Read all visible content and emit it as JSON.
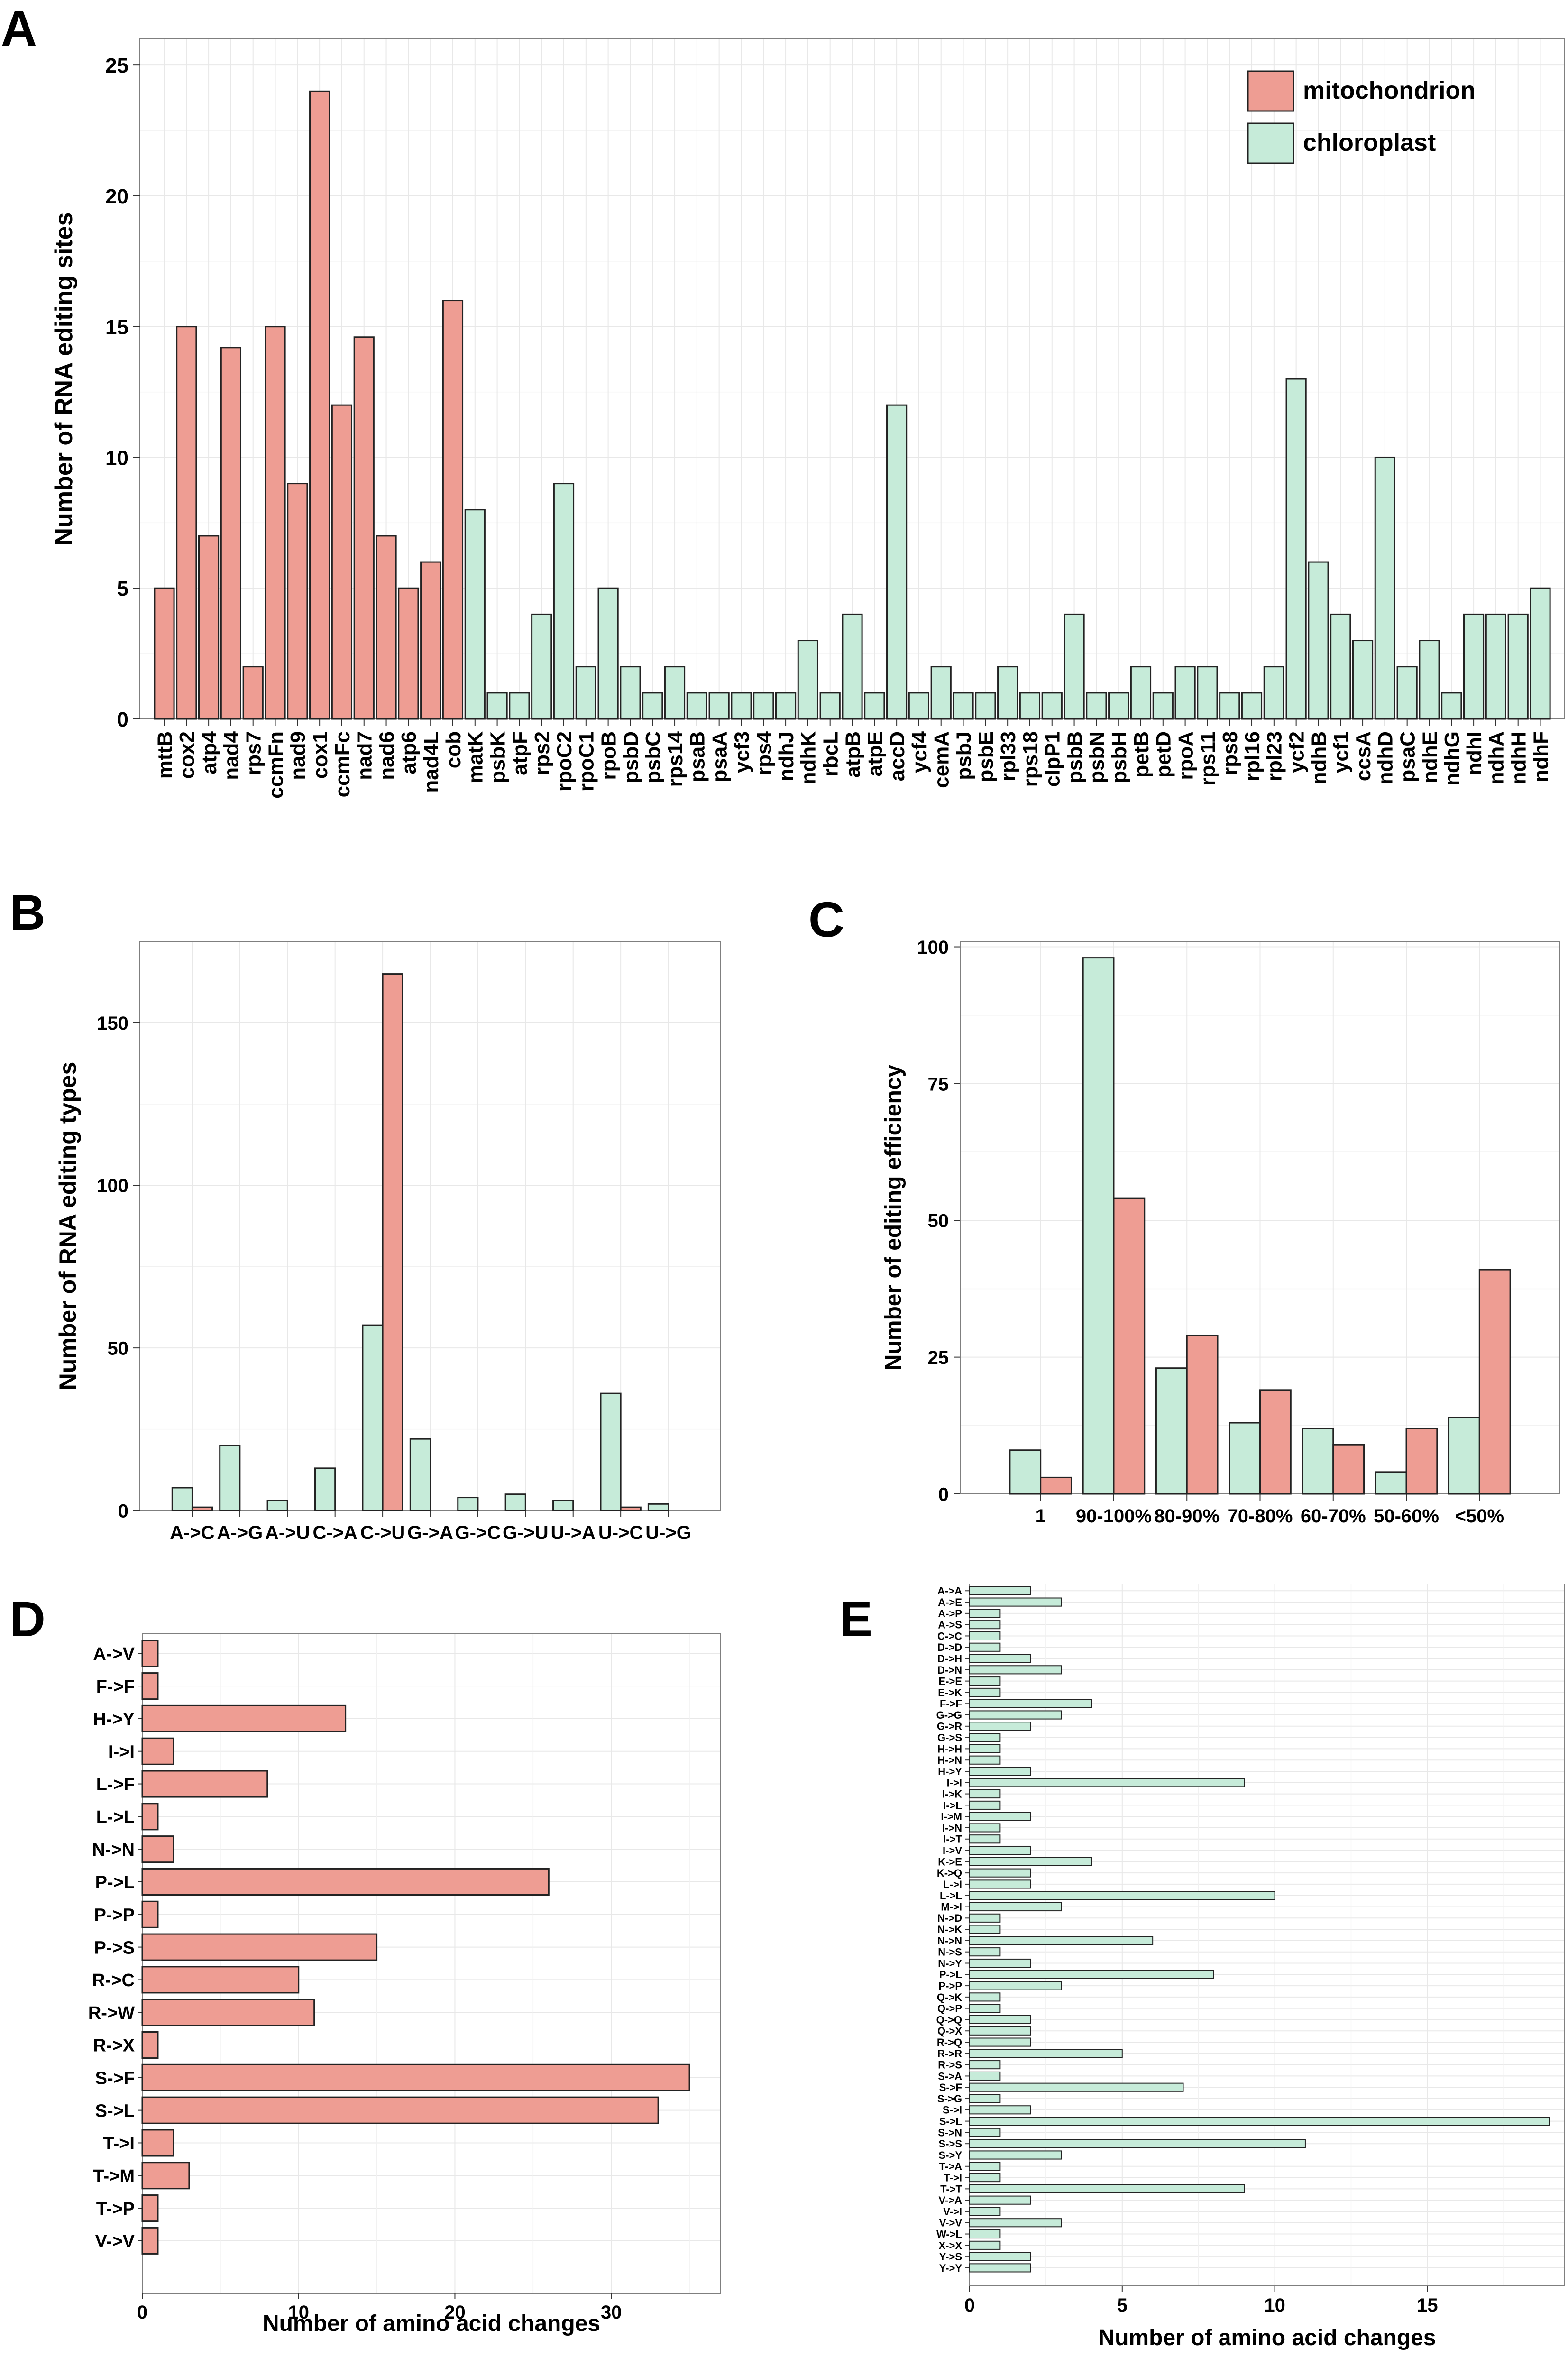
{
  "colors": {
    "mitochondrion": "#ee9d93",
    "chloroplast": "#c6ebd9",
    "grid": "#e8e8e8",
    "frame": "#7f7f7f",
    "bar_edge": "#222222"
  },
  "chart_data": [
    {
      "panel": "A",
      "type": "bar",
      "ylabel": "Number of RNA editing sites",
      "xlabel": "",
      "ylim": [
        0,
        26
      ],
      "yticks": [
        0,
        5,
        10,
        15,
        20,
        25
      ],
      "legend": {
        "placement": "top-right",
        "entries": [
          "mitochondrion",
          "chloroplast"
        ]
      },
      "categories": [
        "mttB",
        "cox2",
        "atp4",
        "nad4",
        "rps7",
        "ccmFn",
        "nad9",
        "cox1",
        "ccmFc",
        "nad7",
        "nad6",
        "atp6",
        "nad4L",
        "cob",
        "matK",
        "psbK",
        "atpF",
        "rps2",
        "rpoC2",
        "rpoC1",
        "rpoB",
        "psbD",
        "psbC",
        "rps14",
        "psaB",
        "psaA",
        "ycf3",
        "rps4",
        "ndhJ",
        "ndhK",
        "rbcL",
        "atpB",
        "atpE",
        "accD",
        "ycf4",
        "cemA",
        "psbJ",
        "psbE",
        "rpl33",
        "rps18",
        "clpP1",
        "psbB",
        "psbN",
        "psbH",
        "petB",
        "petD",
        "rpoA",
        "rps11",
        "rps8",
        "rpl16",
        "rpl23",
        "ycf2",
        "ndhB",
        "ycf1",
        "ccsA",
        "ndhD",
        "psaC",
        "ndhE",
        "ndhG",
        "ndhI",
        "ndhA",
        "ndhH",
        "ndhF"
      ],
      "values": [
        5,
        15,
        7,
        14.2,
        2,
        15,
        9,
        24,
        12,
        14.6,
        7,
        5,
        6,
        16,
        8,
        1,
        1,
        4,
        9,
        2,
        5,
        2,
        1,
        2,
        1,
        1,
        1,
        1,
        1,
        3,
        1,
        4,
        1,
        12,
        1,
        2,
        1,
        1,
        2,
        1,
        1,
        4,
        1,
        1,
        2,
        1,
        2,
        2,
        1,
        1,
        2,
        13,
        6,
        4,
        3,
        10,
        2,
        3,
        1,
        4,
        4,
        4,
        5
      ],
      "series_of": [
        "mitochondrion",
        "mitochondrion",
        "mitochondrion",
        "mitochondrion",
        "mitochondrion",
        "mitochondrion",
        "mitochondrion",
        "mitochondrion",
        "mitochondrion",
        "mitochondrion",
        "mitochondrion",
        "mitochondrion",
        "mitochondrion",
        "mitochondrion",
        "chloroplast",
        "chloroplast",
        "chloroplast",
        "chloroplast",
        "chloroplast",
        "chloroplast",
        "chloroplast",
        "chloroplast",
        "chloroplast",
        "chloroplast",
        "chloroplast",
        "chloroplast",
        "chloroplast",
        "chloroplast",
        "chloroplast",
        "chloroplast",
        "chloroplast",
        "chloroplast",
        "chloroplast",
        "chloroplast",
        "chloroplast",
        "chloroplast",
        "chloroplast",
        "chloroplast",
        "chloroplast",
        "chloroplast",
        "chloroplast",
        "chloroplast",
        "chloroplast",
        "chloroplast",
        "chloroplast",
        "chloroplast",
        "chloroplast",
        "chloroplast",
        "chloroplast",
        "chloroplast",
        "chloroplast",
        "chloroplast",
        "chloroplast",
        "chloroplast",
        "chloroplast",
        "chloroplast",
        "chloroplast",
        "chloroplast",
        "chloroplast",
        "chloroplast",
        "chloroplast",
        "chloroplast",
        "chloroplast"
      ]
    },
    {
      "panel": "B",
      "type": "bar",
      "ylabel": "Number of RNA editing types",
      "xlabel": "",
      "ylim": [
        0,
        175
      ],
      "yticks": [
        0,
        50,
        100,
        150
      ],
      "categories": [
        "A->C",
        "A->G",
        "A->U",
        "C->A",
        "C->U",
        "G->A",
        "G->C",
        "G->U",
        "U->A",
        "U->C",
        "U->G"
      ],
      "series": [
        {
          "name": "chloroplast",
          "values": [
            7,
            20,
            3,
            13,
            57,
            22,
            4,
            5,
            3,
            36,
            2
          ]
        },
        {
          "name": "mitochondrion",
          "values": [
            1,
            0,
            0,
            0,
            165,
            0,
            0,
            0,
            0,
            1,
            0
          ]
        }
      ]
    },
    {
      "panel": "C",
      "type": "bar",
      "ylabel": "Number of editing efficiency",
      "xlabel": "",
      "ylim": [
        0,
        101
      ],
      "yticks": [
        0,
        25,
        50,
        75,
        100
      ],
      "categories": [
        "1",
        "90-100%",
        "80-90%",
        "70-80%",
        "60-70%",
        "50-60%",
        "<50%"
      ],
      "series": [
        {
          "name": "chloroplast",
          "values": [
            8,
            98,
            23,
            13,
            12,
            4,
            14
          ]
        },
        {
          "name": "mitochondrion",
          "values": [
            3,
            54,
            29,
            19,
            9,
            12,
            41
          ]
        }
      ]
    },
    {
      "panel": "D",
      "type": "bar",
      "orientation": "horizontal",
      "xlabel": "Number of amino acid changes",
      "ylabel": "",
      "xlim": [
        0,
        37
      ],
      "xticks": [
        0,
        10,
        20,
        30
      ],
      "categories": [
        "A->V",
        "F->F",
        "H->Y",
        "I->I",
        "L->F",
        "L->L",
        "N->N",
        "P->L",
        "P->P",
        "P->S",
        "R->C",
        "R->W",
        "R->X",
        "S->F",
        "S->L",
        "T->I",
        "T->M",
        "T->P",
        "V->V"
      ],
      "values": [
        1,
        1,
        13,
        2,
        8,
        1,
        2,
        26,
        1,
        15,
        10,
        11,
        1,
        35,
        33,
        2,
        3,
        1,
        1
      ]
    },
    {
      "panel": "E",
      "type": "bar",
      "orientation": "horizontal",
      "xlabel": "Number of amino acid changes",
      "ylabel": "",
      "xlim": [
        0,
        19.5
      ],
      "xticks": [
        0,
        5,
        10,
        15
      ],
      "categories": [
        "A->A",
        "A->E",
        "A->P",
        "A->S",
        "C->C",
        "D->D",
        "D->H",
        "D->N",
        "E->E",
        "E->K",
        "F->F",
        "G->G",
        "G->R",
        "G->S",
        "H->H",
        "H->N",
        "H->Y",
        "I->I",
        "I->K",
        "I->L",
        "I->M",
        "I->N",
        "I->T",
        "I->V",
        "K->E",
        "K->Q",
        "L->I",
        "L->L",
        "M->I",
        "N->D",
        "N->K",
        "N->N",
        "N->S",
        "N->Y",
        "P->L",
        "P->P",
        "Q->K",
        "Q->P",
        "Q->Q",
        "Q->X",
        "R->Q",
        "R->R",
        "R->S",
        "S->A",
        "S->F",
        "S->G",
        "S->I",
        "S->L",
        "S->N",
        "S->S",
        "S->Y",
        "T->A",
        "T->I",
        "T->T",
        "V->A",
        "V->I",
        "V->V",
        "W->L",
        "X->X",
        "Y->S",
        "Y->Y"
      ],
      "values": [
        2,
        3,
        1,
        1,
        1,
        1,
        2,
        3,
        1,
        1,
        4,
        3,
        2,
        1,
        1,
        1,
        2,
        9,
        1,
        1,
        2,
        1,
        1,
        2,
        4,
        2,
        2,
        10,
        3,
        1,
        1,
        6,
        1,
        2,
        8,
        3,
        1,
        1,
        2,
        2,
        2,
        5,
        1,
        1,
        7,
        1,
        2,
        19,
        1,
        11,
        3,
        1,
        1,
        9,
        2,
        1,
        3,
        1,
        1,
        2,
        2
      ]
    }
  ]
}
